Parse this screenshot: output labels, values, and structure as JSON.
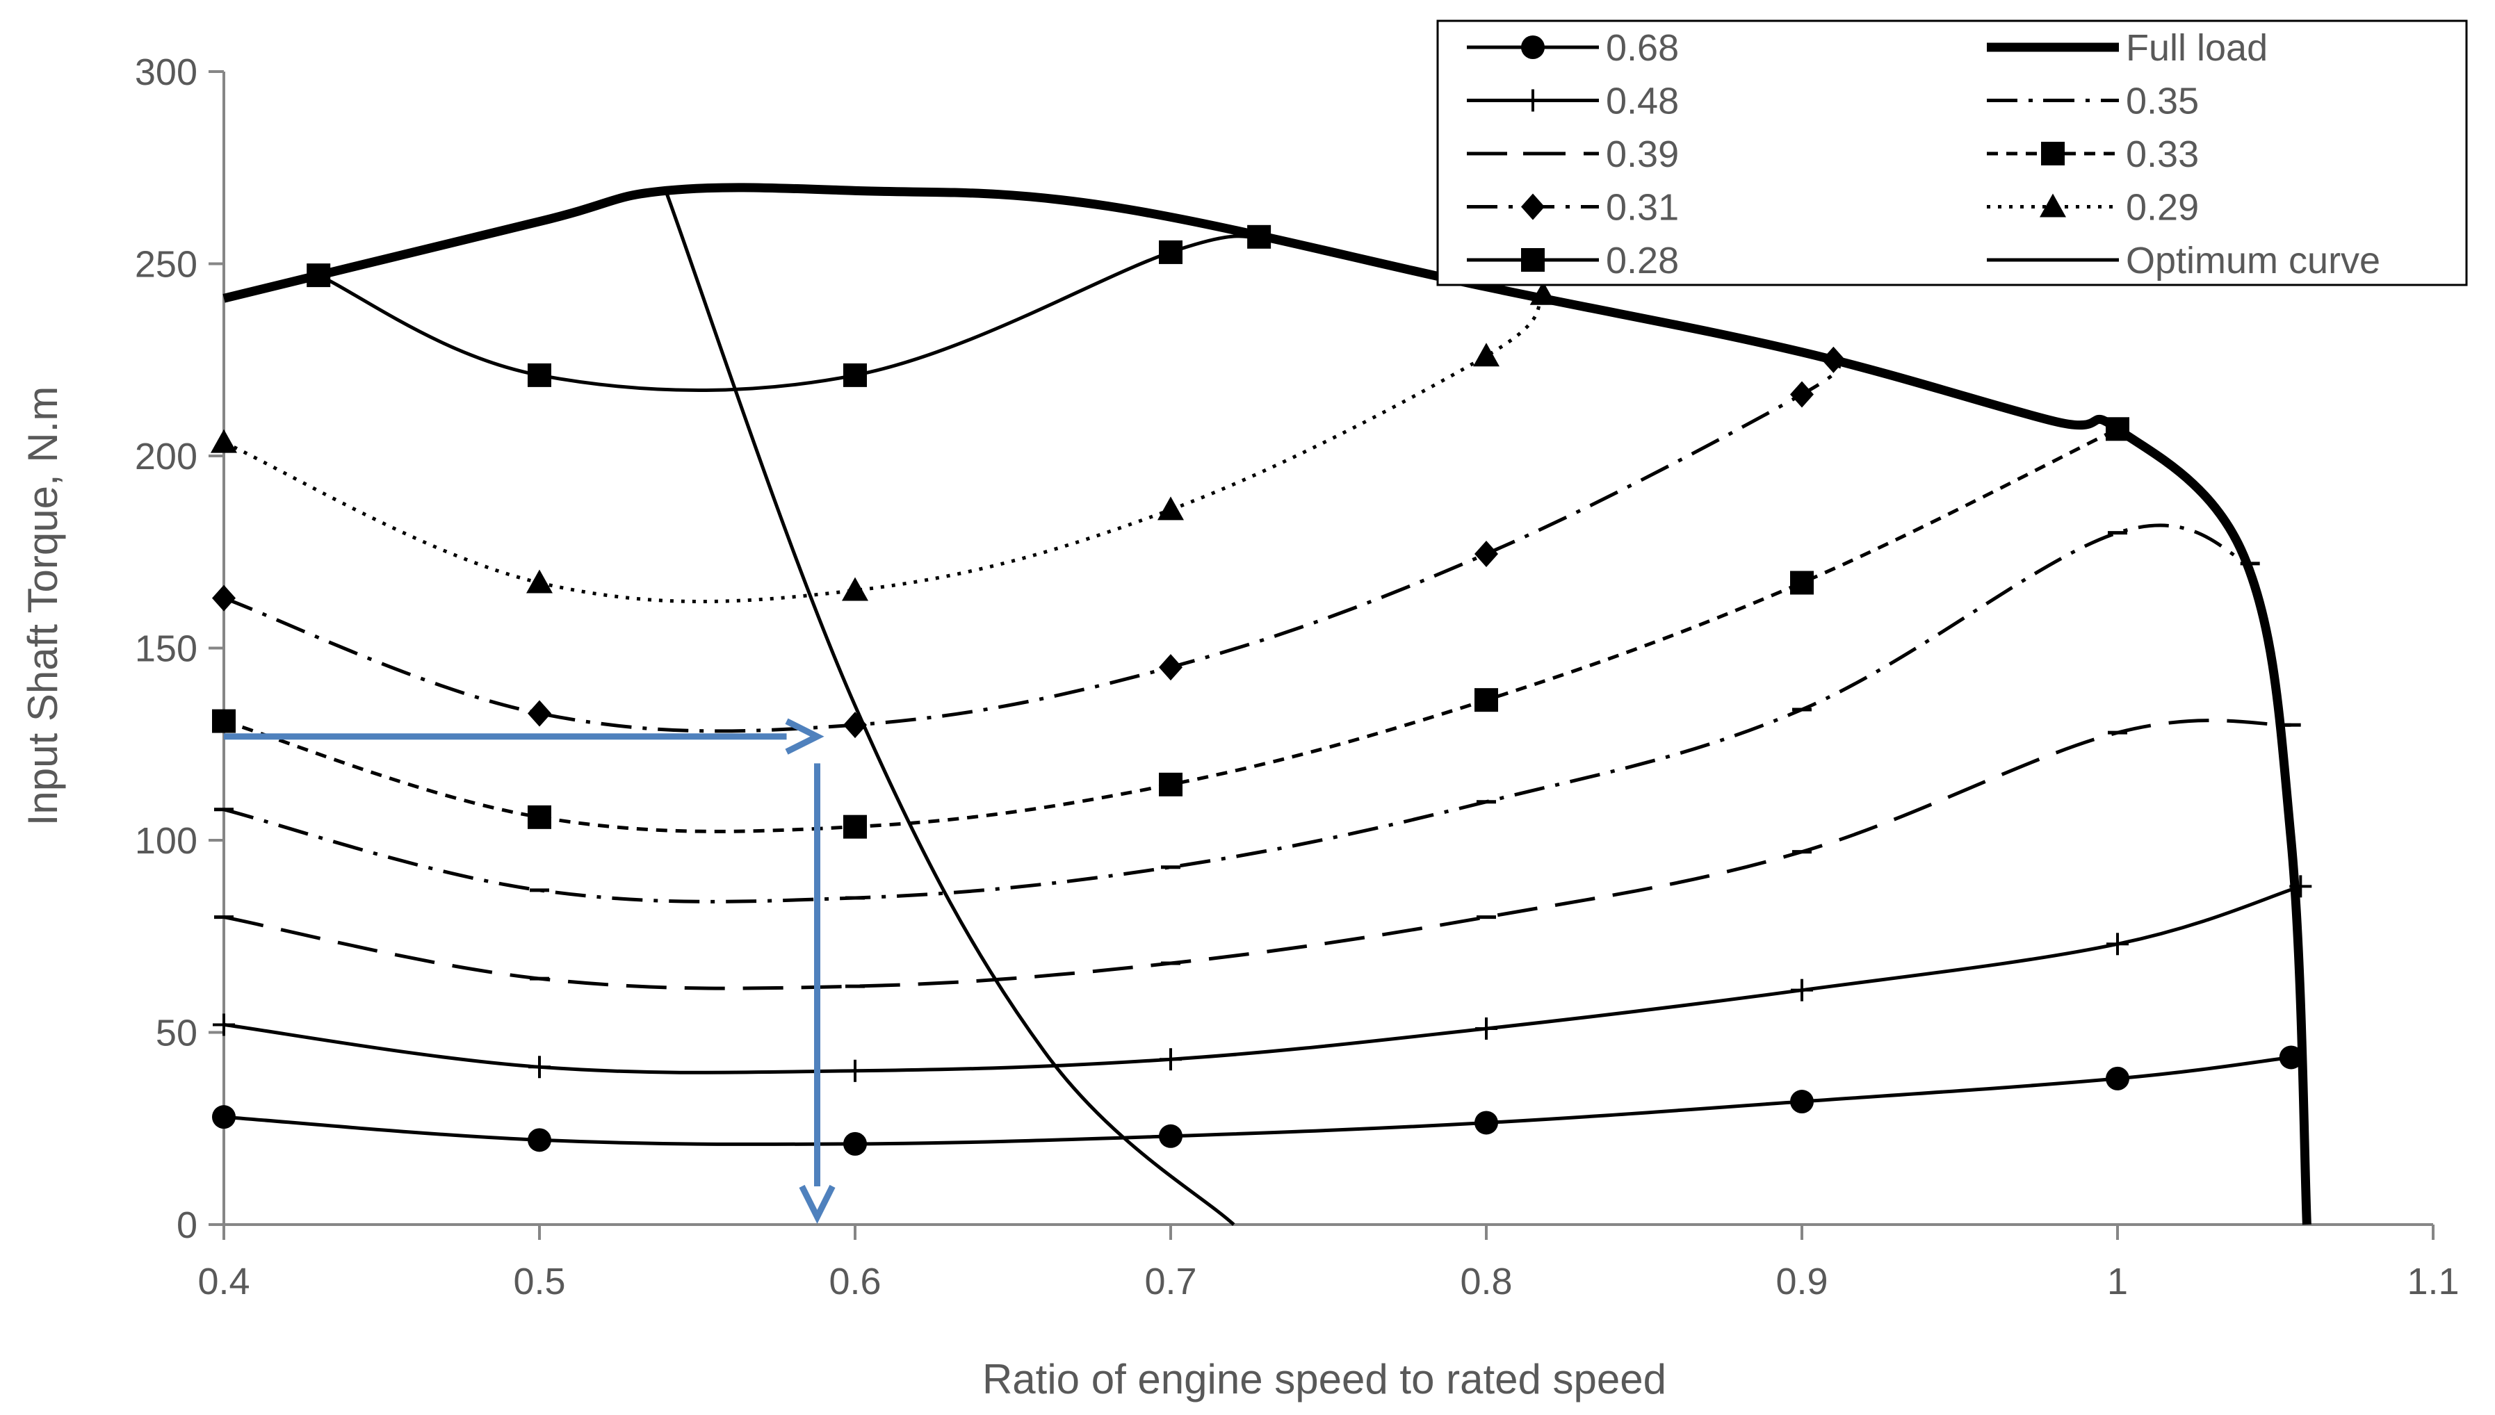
{
  "chart_data": {
    "type": "line",
    "title": "",
    "xlabel": "Ratio of engine speed to rated speed",
    "ylabel": "Input Shaft Torque, N.m",
    "xlim": [
      0.4,
      1.1
    ],
    "ylim": [
      0,
      300
    ],
    "xticks": [
      0.4,
      0.5,
      0.6,
      0.7,
      0.8,
      0.9,
      1,
      1.1
    ],
    "xtick_labels": [
      "0.4",
      "0.5",
      "0.6",
      "0.7",
      "0.8",
      "0.9",
      "1",
      "1.1"
    ],
    "yticks": [
      0,
      50,
      100,
      150,
      200,
      250,
      300
    ],
    "ytick_labels": [
      "0",
      "50",
      "100",
      "150",
      "200",
      "250",
      "300"
    ],
    "grid": false,
    "legend_position": "top-right",
    "legend": {
      "left_column": [
        "0.68",
        "0.48",
        "0.39",
        "0.31",
        "0.28"
      ],
      "right_column": [
        "Full load",
        "0.35",
        "0.33",
        "0.29",
        "Optimum curve"
      ]
    },
    "series": [
      {
        "name": "0.68",
        "marker": "circle",
        "dash": "solid",
        "width": 1,
        "x": [
          0.4,
          0.5,
          0.6,
          0.7,
          0.8,
          0.9,
          1.0,
          1.055
        ],
        "y": [
          28,
          22,
          21,
          23,
          26.5,
          32,
          38,
          43.5
        ]
      },
      {
        "name": "0.48",
        "marker": "plus",
        "dash": "solid",
        "width": 1,
        "x": [
          0.4,
          0.5,
          0.6,
          0.7,
          0.8,
          0.9,
          1.0,
          1.058
        ],
        "y": [
          52,
          41,
          40,
          43,
          51,
          61,
          73,
          88
        ]
      },
      {
        "name": "0.39",
        "marker": "dash",
        "dash": "longdash",
        "width": 1,
        "x": [
          0.4,
          0.5,
          0.6,
          0.7,
          0.8,
          0.9,
          1.0,
          1.055
        ],
        "y": [
          80,
          64,
          62,
          68,
          80,
          97,
          128,
          130
        ]
      },
      {
        "name": "0.35",
        "marker": "dash",
        "dash": "dashdot",
        "width": 1,
        "x": [
          0.4,
          0.5,
          0.6,
          0.7,
          0.8,
          0.9,
          1.0,
          1.042
        ],
        "y": [
          108,
          87,
          85,
          93,
          110,
          134,
          180,
          172
        ]
      },
      {
        "name": "0.33",
        "marker": "square",
        "dash": "shortdash",
        "width": 1,
        "x": [
          0.4,
          0.5,
          0.6,
          0.7,
          0.8,
          0.9,
          1.0
        ],
        "y": [
          131,
          106,
          103.5,
          114.5,
          136.5,
          167,
          207
        ]
      },
      {
        "name": "0.31",
        "marker": "diamond",
        "dash": "dashdot",
        "width": 1,
        "x": [
          0.4,
          0.5,
          0.6,
          0.7,
          0.8,
          0.9,
          0.91
        ],
        "y": [
          163,
          133,
          130,
          145,
          174.5,
          216,
          225
        ]
      },
      {
        "name": "0.29",
        "marker": "triangle",
        "dash": "dotted",
        "width": 1,
        "x": [
          0.4,
          0.5,
          0.6,
          0.7,
          0.8,
          0.818
        ],
        "y": [
          203.5,
          167,
          165,
          186,
          226,
          242
        ]
      },
      {
        "name": "0.28",
        "marker": "square",
        "dash": "solid",
        "width": 1,
        "x": [
          0.43,
          0.5,
          0.6,
          0.7,
          0.728
        ],
        "y": [
          247,
          221,
          221,
          253,
          257
        ]
      },
      {
        "name": "Full load",
        "marker": "none",
        "dash": "solid",
        "width": 2.2,
        "x": [
          0.4,
          0.5,
          0.54,
          0.6,
          0.68,
          0.8,
          0.9,
          0.98,
          1.0,
          1.04,
          1.055,
          1.06
        ],
        "y": [
          241,
          261,
          269,
          269,
          265,
          244,
          227,
          209,
          207,
          174,
          100,
          0
        ]
      },
      {
        "name": "Optimum curve",
        "marker": "none",
        "dash": "solid",
        "width": 1,
        "x": [
          0.54,
          0.6,
          0.66,
          0.72
        ],
        "y": [
          269,
          135,
          45,
          0
        ]
      }
    ],
    "annotations": [
      {
        "type": "arrow",
        "color": "#4F81BD",
        "from": [
          0.4,
          127
        ],
        "to": [
          0.588,
          127
        ]
      },
      {
        "type": "arrow",
        "color": "#4F81BD",
        "from": [
          0.588,
          120
        ],
        "to": [
          0.588,
          2
        ]
      }
    ]
  }
}
